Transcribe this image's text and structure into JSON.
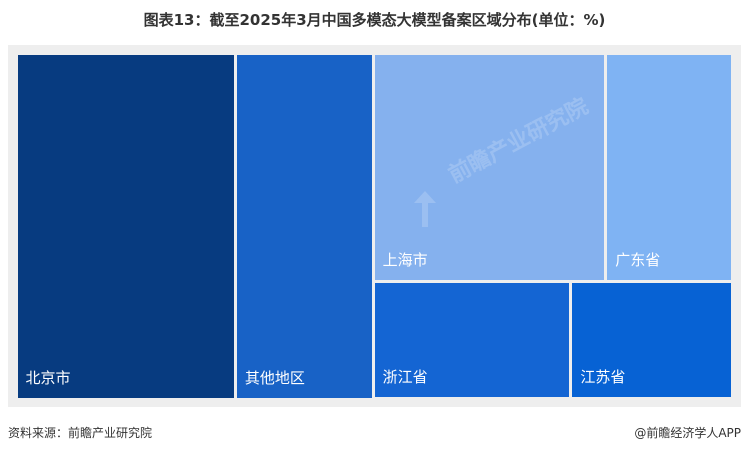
{
  "title": "图表13：截至2025年3月中国多模态大模型备案区域分布(单位：%)",
  "source": "资料来源：前瞻产业研究院",
  "credit": "@前瞻经济学人APP",
  "watermark": "前瞻产业研究院",
  "chart_data": {
    "type": "treemap",
    "title": "图表13：截至2025年3月中国多模态大模型备案区域分布(单位：%)",
    "unit": "%",
    "categories": [
      "北京市",
      "其他地区",
      "上海市",
      "广东省",
      "浙江省",
      "江苏省"
    ],
    "values": [
      30.6,
      19.2,
      21.4,
      11.7,
      9.4,
      7.7
    ],
    "colors": [
      "#073b80",
      "#1862c6",
      "#85b1ee",
      "#7fb3f3",
      "#1465d3",
      "#0762d4"
    ]
  }
}
